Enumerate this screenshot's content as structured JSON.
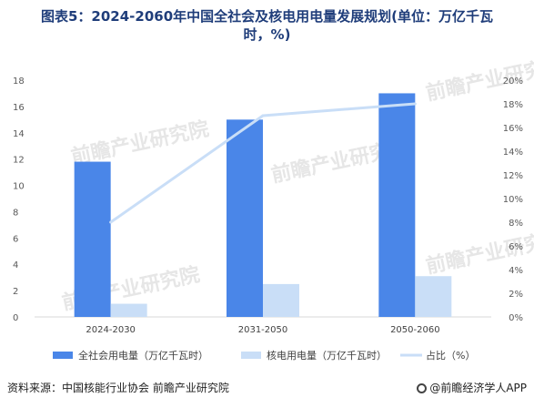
{
  "chart_data": {
    "type": "bar",
    "title_line1": "图表5：2024-2060年中国全社会及核电用电量发展规划(单位：万亿千瓦",
    "title_line2": "时，%)",
    "categories": [
      "2024-2030",
      "2031-2050",
      "2050-2060"
    ],
    "series": [
      {
        "name": "全社会用电量（万亿千瓦时）",
        "type": "bar",
        "axis": "left",
        "color": "#4a86e8",
        "values": [
          11.8,
          15.0,
          17.0
        ]
      },
      {
        "name": "核电用电量（万亿千瓦时）",
        "type": "bar",
        "axis": "left",
        "color": "#c9def7",
        "values": [
          1.0,
          2.5,
          3.1
        ]
      },
      {
        "name": "占比（%）",
        "type": "line",
        "axis": "right",
        "color": "#c9def7",
        "values": [
          8,
          17,
          18
        ]
      }
    ],
    "ylim": [
      0,
      18
    ],
    "yticks": [
      "0",
      "2",
      "4",
      "6",
      "8",
      "10",
      "12",
      "14",
      "16",
      "18"
    ],
    "y2lim": [
      0,
      20
    ],
    "y2ticks": [
      "0%",
      "2%",
      "4%",
      "6%",
      "8%",
      "10%",
      "12%",
      "14%",
      "16%",
      "18%",
      "20%"
    ],
    "legend_position": "bottom",
    "grid": false
  },
  "footer": {
    "source": "资料来源：中国核能行业协会 前瞻产业研究院",
    "brand": "@前瞻经济学人APP"
  },
  "watermark": "前瞻产业研究院"
}
